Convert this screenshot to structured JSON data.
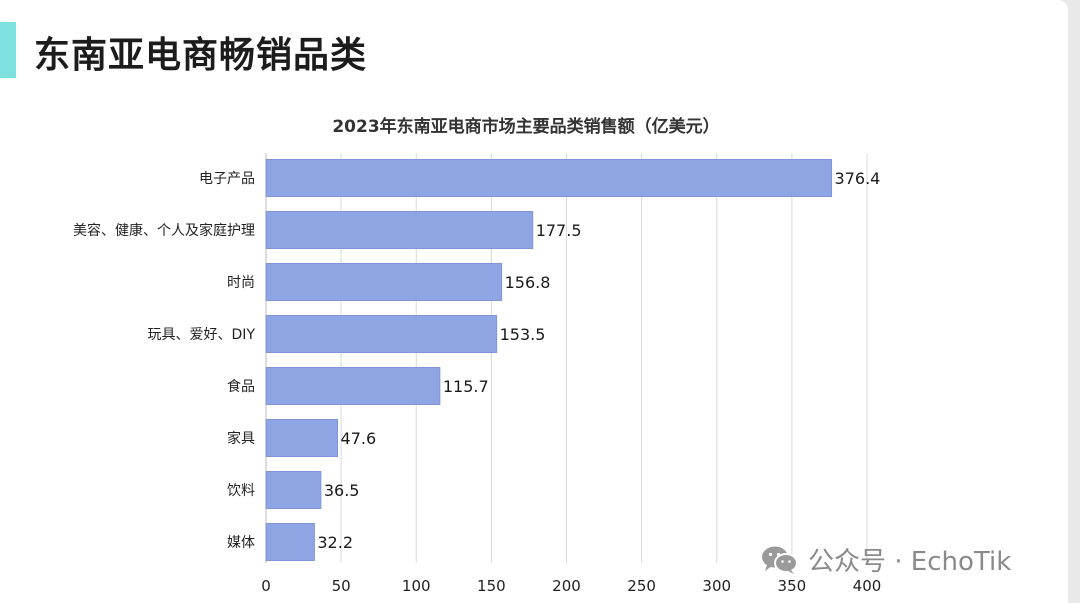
{
  "page": {
    "title": "东南亚电商畅销品类"
  },
  "watermark": {
    "text": "公众号 · EchoTik",
    "icon": "wechat-icon"
  },
  "colors": {
    "bar": "#8fa5e3",
    "bar_stroke": "#7e96d8",
    "accent": "#7fe0e0",
    "grid": "#d9d9d9"
  },
  "chart_data": {
    "type": "bar",
    "orientation": "horizontal",
    "title": "2023年东南亚电商市场主要品类销售额（亿美元）",
    "categories": [
      "电子产品",
      "美容、健康、个人及家庭护理",
      "时尚",
      "玩具、爱好、DIY",
      "食品",
      "家具",
      "饮料",
      "媒体"
    ],
    "values": [
      376.4,
      177.5,
      156.8,
      153.5,
      115.7,
      47.6,
      36.5,
      32.2
    ],
    "value_labels": [
      "376.4",
      "177.5",
      "156.8",
      "153.5",
      "115.7",
      "47.6",
      "36.5",
      "32.2"
    ],
    "xlim": [
      0,
      400
    ],
    "xticks": [
      0,
      50,
      100,
      150,
      200,
      250,
      300,
      350,
      400
    ],
    "xtick_labels": [
      "0",
      "50",
      "100",
      "150",
      "200",
      "250",
      "300",
      "350",
      "400"
    ],
    "xlabel": "",
    "ylabel": "",
    "grid": true,
    "legend": "none"
  }
}
